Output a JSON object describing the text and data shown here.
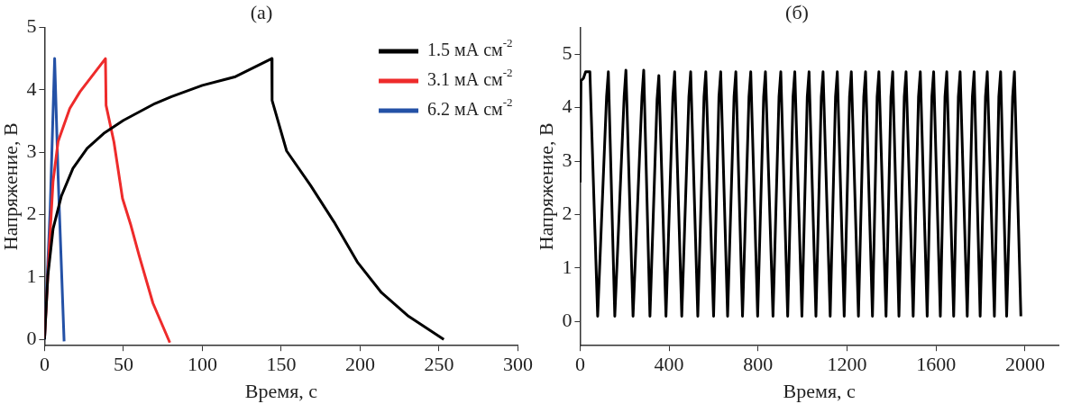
{
  "chart_data": [
    {
      "type": "line",
      "title": "(а)",
      "xlabel": "Время, с",
      "ylabel": "Напряжение, В",
      "xlim": [
        0,
        300
      ],
      "xticks": [
        0,
        50,
        100,
        150,
        200,
        250,
        300
      ],
      "ylim": [
        -0.1,
        5
      ],
      "yticks": [
        0,
        1,
        2,
        3,
        4,
        5
      ],
      "grid": false,
      "legend": "top right",
      "marker": "none",
      "series": [
        {
          "name": "1.5 мА см$^{-2}$",
          "color": "#000000",
          "x": [
            0,
            2.1,
            5.4,
            10.7,
            18,
            27,
            37.5,
            50,
            70,
            80.5,
            100,
            121,
            144,
            144.2,
            153.4,
            168.5,
            183.5,
            198.5,
            213.5,
            230.7,
            253
          ],
          "values": [
            0,
            1.02,
            1.77,
            2.3,
            2.74,
            3.06,
            3.3,
            3.51,
            3.78,
            3.89,
            4.07,
            4.21,
            4.5,
            3.83,
            3.02,
            2.47,
            1.88,
            1.23,
            0.75,
            0.37,
            0
          ]
        },
        {
          "name": "3.1 мА см$^{-2}$",
          "color": "#ee2b2b",
          "x": [
            0,
            3.2,
            5.4,
            8.6,
            16,
            22.5,
            38.6,
            39,
            44,
            49.4,
            54.7,
            60,
            68.7,
            79.4
          ],
          "values": [
            0.02,
            1.55,
            2.53,
            3.17,
            3.7,
            3.97,
            4.5,
            3.75,
            3.16,
            2.26,
            1.83,
            1.34,
            0.58,
            -0.05
          ]
        },
        {
          "name": "6.2 мА см$^{-2}$",
          "color": "#2451a6",
          "x": [
            0,
            3.6,
            6.4,
            8.6,
            12.4
          ],
          "values": [
            0,
            2.1,
            4.5,
            2.62,
            -0.03
          ]
        }
      ]
    },
    {
      "type": "line",
      "title": "(б)",
      "xlabel": "Время, с",
      "ylabel": "Напряжение, В",
      "xlim": [
        0,
        2150
      ],
      "xticks": [
        0,
        400,
        800,
        1200,
        1600,
        2000
      ],
      "ylim": [
        -0.45,
        5.5
      ],
      "yticks": [
        0,
        1,
        2,
        3,
        4,
        5
      ],
      "grid": false,
      "legend": false,
      "marker": "none",
      "series": [
        {
          "color": "#000000",
          "x": [
            0,
            4,
            15,
            25,
            44,
            79,
            119,
            127,
            156,
            198,
            206,
            238,
            278,
            286,
            314,
            346,
            354,
            386,
            417,
            425,
            457,
            489,
            497,
            529,
            557,
            565,
            600,
            624,
            632,
            663,
            692,
            700,
            730,
            759,
            767,
            798,
            825,
            833,
            867,
            894,
            902,
            933,
            957,
            965,
            997,
            1021,
            1029,
            1060,
            1084,
            1092,
            1124,
            1148,
            1156,
            1187,
            1211,
            1219,
            1251,
            1275,
            1283,
            1314,
            1335,
            1343,
            1375,
            1397,
            1405,
            1433,
            1457,
            1465,
            1497,
            1521,
            1529,
            1560,
            1581,
            1589,
            1619,
            1640,
            1648,
            1679,
            1700,
            1708,
            1740,
            1763,
            1771,
            1798,
            1822,
            1830,
            1862,
            1882,
            1890,
            1917,
            1944,
            1952,
            1981
          ],
          "values": [
            2.6,
            4.5,
            4.55,
            4.67,
            4.67,
            0.1,
            4.2,
            4.67,
            0.1,
            4.2,
            4.7,
            0.1,
            4.2,
            4.7,
            0.1,
            4.15,
            4.6,
            0.1,
            4.2,
            4.67,
            0.1,
            4.2,
            4.67,
            0.1,
            4.2,
            4.67,
            0.1,
            4.2,
            4.67,
            0.1,
            4.2,
            4.67,
            0.1,
            4.2,
            4.67,
            0.1,
            4.2,
            4.67,
            0.1,
            4.2,
            4.67,
            0.1,
            4.2,
            4.67,
            0.1,
            4.2,
            4.67,
            0.1,
            4.2,
            4.67,
            0.1,
            4.2,
            4.67,
            0.1,
            4.2,
            4.67,
            0.1,
            4.2,
            4.67,
            0.1,
            4.2,
            4.67,
            0.1,
            4.2,
            4.67,
            0.1,
            4.2,
            4.67,
            0.1,
            4.2,
            4.67,
            0.1,
            4.2,
            4.67,
            0.1,
            4.2,
            4.67,
            0.1,
            4.2,
            4.67,
            0.1,
            4.2,
            4.67,
            0.1,
            4.2,
            4.67,
            0.1,
            4.2,
            4.67,
            0.1,
            4.2,
            4.67,
            0.1
          ]
        }
      ]
    }
  ]
}
